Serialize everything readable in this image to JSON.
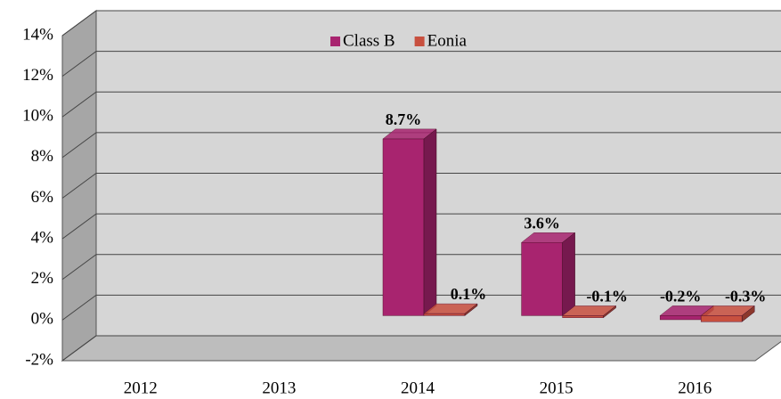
{
  "chart_data": {
    "type": "bar3d",
    "categories": [
      "2012",
      "2013",
      "2014",
      "2015",
      "2016"
    ],
    "series": [
      {
        "name": "Class B",
        "color": "#a8246f",
        "values": [
          null,
          null,
          8.7,
          3.6,
          -0.2
        ],
        "value_labels": [
          null,
          null,
          "8.7%",
          "3.6%",
          "-0.2%"
        ]
      },
      {
        "name": "Eonia",
        "color": "#c8503f",
        "values": [
          null,
          null,
          0.1,
          -0.1,
          -0.3
        ],
        "value_labels": [
          null,
          null,
          "0.1%",
          "-0.1%",
          "-0.3%"
        ]
      }
    ],
    "ylim": [
      -2,
      14
    ],
    "yticks": [
      {
        "value": -2,
        "label": "-2%"
      },
      {
        "value": 0,
        "label": "0%"
      },
      {
        "value": 2,
        "label": "2%"
      },
      {
        "value": 4,
        "label": "4%"
      },
      {
        "value": 6,
        "label": "6%"
      },
      {
        "value": 8,
        "label": "8%"
      },
      {
        "value": 10,
        "label": "10%"
      },
      {
        "value": 12,
        "label": "12%"
      },
      {
        "value": 14,
        "label": "14%"
      }
    ],
    "grid": true,
    "legend": "top"
  }
}
